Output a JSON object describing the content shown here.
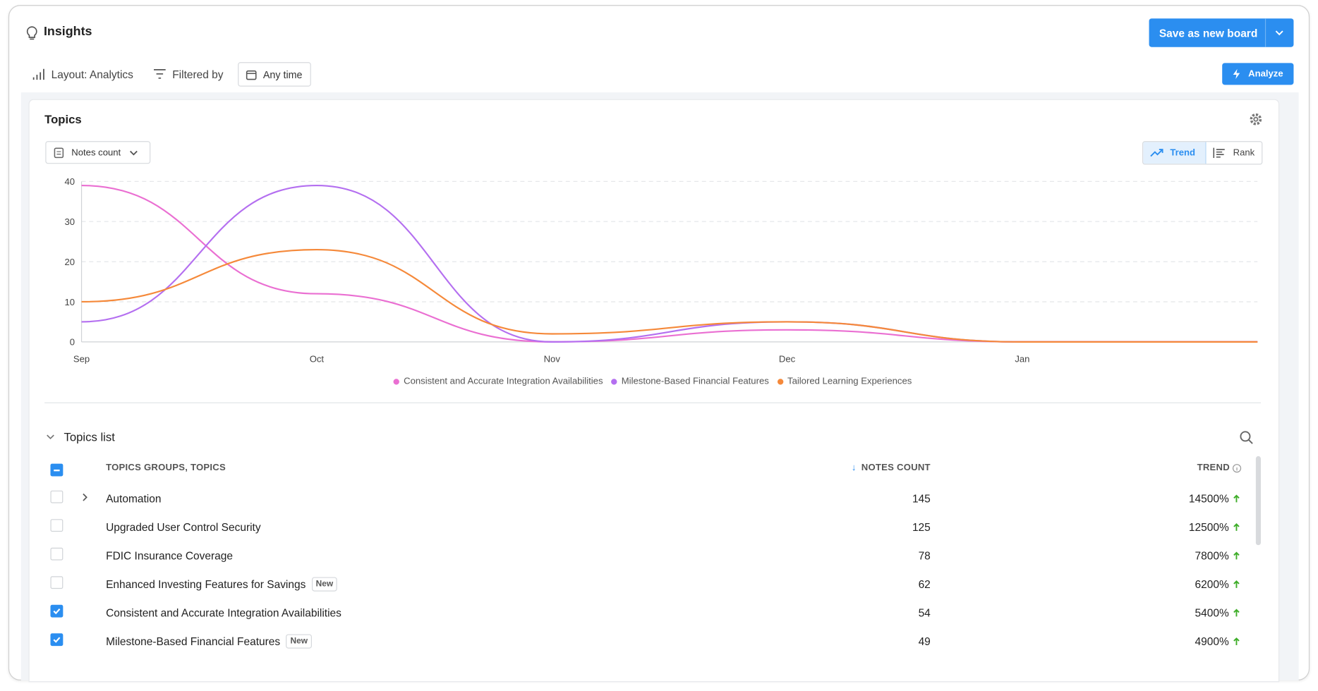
{
  "header": {
    "title": "Insights",
    "save_button": "Save as new board"
  },
  "toolbar": {
    "layout": "Layout: Analytics",
    "filter": "Filtered by",
    "time": "Any time",
    "analyze": "Analyze"
  },
  "panel": {
    "title": "Topics",
    "metric": "Notes count",
    "views": [
      "Trend",
      "Rank"
    ],
    "active_view": "Trend"
  },
  "chart_data": {
    "type": "line",
    "categories": [
      "Sep",
      "Oct",
      "Nov",
      "Dec",
      "Jan",
      null
    ],
    "series": [
      {
        "name": "Consistent and Accurate Integration Availabilities",
        "color": "#ea6fd2",
        "values": [
          39,
          12,
          0,
          3,
          0,
          0
        ]
      },
      {
        "name": "Milestone-Based Financial Features",
        "color": "#b46ff0",
        "values": [
          5,
          39,
          0,
          5,
          0,
          0
        ]
      },
      {
        "name": "Tailored Learning Experiences",
        "color": "#f5893a",
        "values": [
          10,
          23,
          2,
          5,
          0,
          0
        ]
      }
    ],
    "ylim": [
      0,
      40
    ],
    "yticks": [
      0,
      10,
      20,
      30,
      40
    ],
    "grid": true,
    "legend": "bottom"
  },
  "table": {
    "title": "Topics list",
    "columns": [
      "TOPICS GROUPS, TOPICS",
      "NOTES COUNT",
      "TREND"
    ],
    "rows": [
      {
        "name": "Automation",
        "count": 145,
        "trend": "14500%",
        "checked": false,
        "expandable": true
      },
      {
        "name": "Upgraded User Control Security",
        "count": 125,
        "trend": "12500%",
        "checked": false
      },
      {
        "name": "FDIC Insurance Coverage",
        "count": 78,
        "trend": "7800%",
        "checked": false
      },
      {
        "name": "Enhanced Investing Features for Savings",
        "badge": "New",
        "count": 62,
        "trend": "6200%",
        "checked": false
      },
      {
        "name": "Consistent and Accurate Integration Availabilities",
        "count": 54,
        "trend": "5400%",
        "checked": true
      },
      {
        "name": "Milestone-Based Financial Features",
        "badge": "New",
        "count": 49,
        "trend": "4900%",
        "checked": true
      }
    ]
  }
}
